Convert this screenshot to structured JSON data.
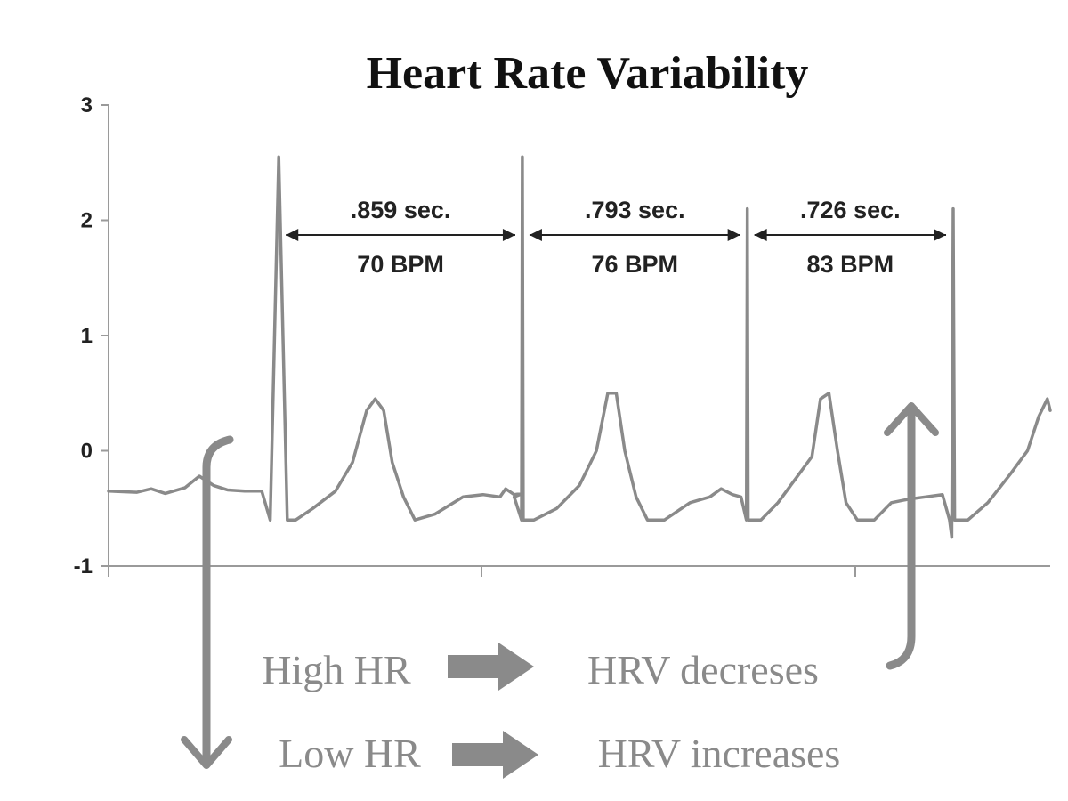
{
  "chart_data": {
    "type": "line",
    "title": "Heart Rate Variability",
    "xlabel": "",
    "ylabel": "",
    "ylim": [
      -1,
      3
    ],
    "y_ticks": [
      "3",
      "2",
      "1",
      "0",
      "-1"
    ],
    "grid": false,
    "r_peak_times_sec": [
      0.0,
      0.859,
      1.652,
      2.378
    ],
    "r_peak_amplitudes": [
      2.55,
      2.55,
      2.1,
      2.1
    ],
    "series": [
      {
        "values_xy": [
          [
            -0.6,
            -0.35
          ],
          [
            -0.5,
            -0.36
          ],
          [
            -0.45,
            -0.33
          ],
          [
            -0.4,
            -0.37
          ],
          [
            -0.33,
            -0.32
          ],
          [
            -0.28,
            -0.22
          ],
          [
            -0.23,
            -0.3
          ],
          [
            -0.18,
            -0.34
          ],
          [
            -0.12,
            -0.35
          ],
          [
            -0.06,
            -0.35
          ],
          [
            -0.03,
            -0.6
          ],
          [
            0.0,
            2.55
          ],
          [
            0.03,
            -0.6
          ],
          [
            0.06,
            -0.6
          ],
          [
            0.12,
            -0.5
          ],
          [
            0.2,
            -0.35
          ],
          [
            0.26,
            -0.1
          ],
          [
            0.31,
            0.35
          ],
          [
            0.34,
            0.45
          ],
          [
            0.37,
            0.35
          ],
          [
            0.4,
            -0.1
          ],
          [
            0.44,
            -0.4
          ],
          [
            0.48,
            -0.6
          ],
          [
            0.55,
            -0.55
          ],
          [
            0.65,
            -0.4
          ],
          [
            0.72,
            -0.38
          ],
          [
            0.78,
            -0.4
          ],
          [
            0.8,
            -0.33
          ],
          [
            0.83,
            -0.38
          ],
          [
            0.86,
            -0.37
          ],
          [
            0.83,
            -0.4
          ],
          [
            0.856,
            -0.6
          ],
          [
            0.859,
            2.55
          ],
          [
            0.862,
            -0.6
          ],
          [
            0.9,
            -0.6
          ],
          [
            0.98,
            -0.5
          ],
          [
            1.06,
            -0.3
          ],
          [
            1.12,
            0.0
          ],
          [
            1.16,
            0.5
          ],
          [
            1.19,
            0.5
          ],
          [
            1.22,
            0.0
          ],
          [
            1.26,
            -0.4
          ],
          [
            1.3,
            -0.6
          ],
          [
            1.36,
            -0.6
          ],
          [
            1.45,
            -0.45
          ],
          [
            1.52,
            -0.4
          ],
          [
            1.56,
            -0.33
          ],
          [
            1.6,
            -0.38
          ],
          [
            1.63,
            -0.4
          ],
          [
            1.649,
            -0.6
          ],
          [
            1.652,
            2.1
          ],
          [
            1.655,
            -0.6
          ],
          [
            1.7,
            -0.6
          ],
          [
            1.76,
            -0.45
          ],
          [
            1.82,
            -0.25
          ],
          [
            1.88,
            -0.05
          ],
          [
            1.91,
            0.45
          ],
          [
            1.94,
            0.5
          ],
          [
            1.97,
            0.0
          ],
          [
            2.0,
            -0.45
          ],
          [
            2.04,
            -0.6
          ],
          [
            2.1,
            -0.6
          ],
          [
            2.16,
            -0.45
          ],
          [
            2.22,
            -0.42
          ],
          [
            2.28,
            -0.4
          ],
          [
            2.34,
            -0.38
          ],
          [
            2.365,
            -0.6
          ],
          [
            2.373,
            -0.75
          ],
          [
            2.378,
            2.1
          ],
          [
            2.383,
            -0.6
          ],
          [
            2.43,
            -0.6
          ],
          [
            2.5,
            -0.45
          ],
          [
            2.58,
            -0.2
          ],
          [
            2.64,
            0.0
          ],
          [
            2.68,
            0.3
          ],
          [
            2.71,
            0.45
          ],
          [
            2.72,
            0.35
          ]
        ]
      }
    ],
    "annotations": [
      {
        "interval": ".859 sec.",
        "bpm": "70 BPM",
        "from": 0.0,
        "to": 0.859
      },
      {
        "interval": ".793 sec.",
        "bpm": "76 BPM",
        "from": 0.859,
        "to": 1.652
      },
      {
        "interval": ".726 sec.",
        "bpm": "83 BPM",
        "from": 1.652,
        "to": 2.378
      }
    ],
    "captions": [
      {
        "left": "High HR",
        "right": "HRV decreses",
        "arrow": "up"
      },
      {
        "left": "Low HR",
        "right": "HRV increases",
        "arrow": "down"
      }
    ],
    "colors": {
      "trace": "#8a8a8a",
      "axis": "#9a9a9a",
      "text": "#222222",
      "caption": "#8a8a8a",
      "arrow": "#8a8a8a"
    }
  }
}
